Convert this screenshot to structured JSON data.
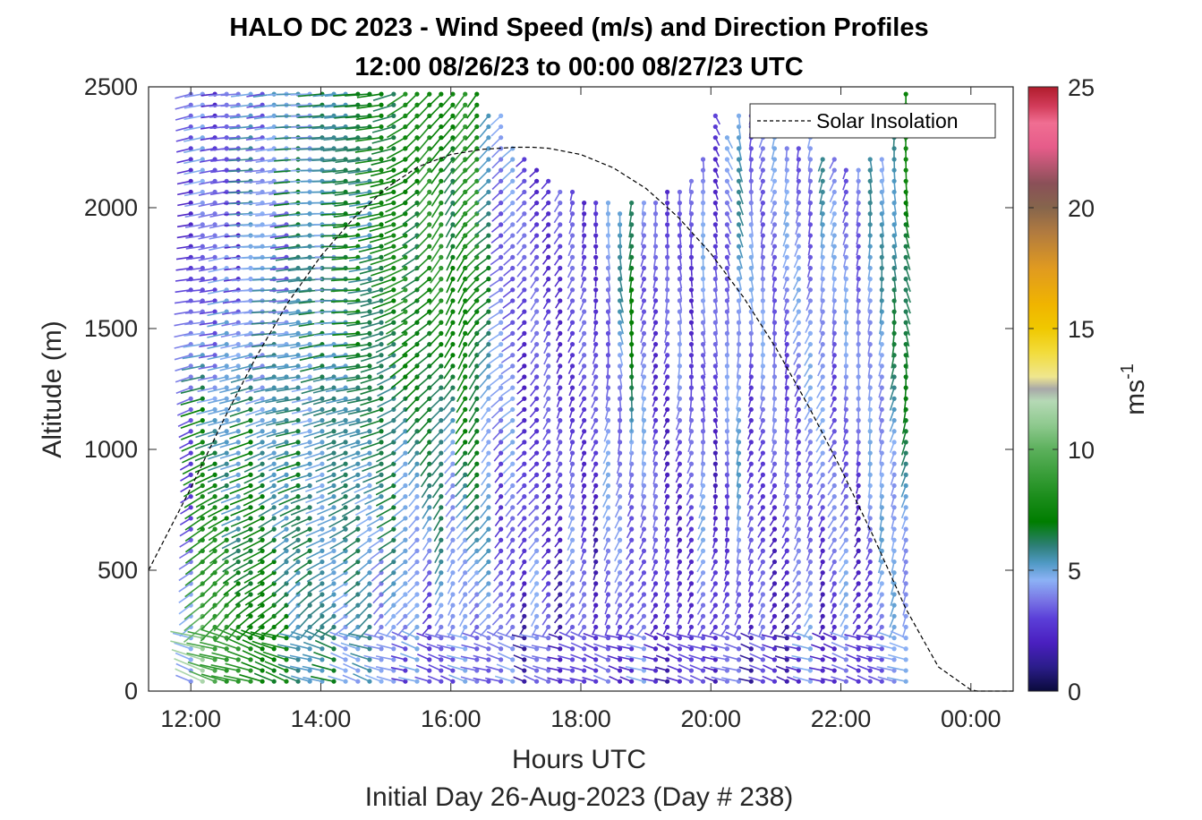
{
  "chart_data": {
    "type": "scatter",
    "title": "HALO DC 2023 - Wind Speed (m/s) and Direction Profiles",
    "subtitle": "12:00 08/26/23 to 00:00 08/27/23  UTC",
    "xlabel": "Hours UTC",
    "xlabel2": "Initial Day 26-Aug-2023 (Day # 238)",
    "ylabel": "Altitude (m)",
    "xlim": [
      11.35,
      24.65
    ],
    "ylim": [
      0,
      2500
    ],
    "x_ticks": [
      12,
      14,
      16,
      18,
      20,
      22,
      24
    ],
    "x_tick_labels": [
      "12:00",
      "14:00",
      "16:00",
      "18:00",
      "20:00",
      "22:00",
      "00:00"
    ],
    "y_ticks": [
      0,
      500,
      1000,
      1500,
      2000,
      2500
    ],
    "y_tick_labels": [
      "0",
      "500",
      "1000",
      "1500",
      "2000",
      "2500"
    ],
    "grid": false,
    "legend": {
      "location": "top-right",
      "entries": [
        "Solar Insolation"
      ]
    },
    "colorbar": {
      "label": "ms",
      "label_exponent": "-1",
      "range": [
        0,
        25
      ],
      "ticks": [
        0,
        5,
        10,
        15,
        20,
        25
      ],
      "tick_labels": [
        "0",
        "5",
        "10",
        "15",
        "20",
        "25"
      ],
      "colormap": [
        [
          0,
          "#0a0a3c"
        ],
        [
          1,
          "#2b1d8a"
        ],
        [
          2,
          "#4a1fc0"
        ],
        [
          3,
          "#5b3fd8"
        ],
        [
          3.8,
          "#7a78e6"
        ],
        [
          4.6,
          "#8cb2f5"
        ],
        [
          5.3,
          "#4f99c4"
        ],
        [
          6,
          "#2e7f78"
        ],
        [
          7,
          "#007d00"
        ],
        [
          8,
          "#1a8c1a"
        ],
        [
          9,
          "#3a9e3a"
        ],
        [
          10,
          "#5cb05c"
        ],
        [
          11,
          "#8ec98e"
        ],
        [
          12,
          "#b5d9b5"
        ],
        [
          12.5,
          "#a8a8a8"
        ],
        [
          13,
          "#efe68f"
        ],
        [
          14,
          "#f2dc3c"
        ],
        [
          15,
          "#f0c800"
        ],
        [
          16,
          "#f0b400"
        ],
        [
          17.5,
          "#e09a20"
        ],
        [
          19,
          "#b07a40"
        ],
        [
          20,
          "#86654c"
        ],
        [
          21,
          "#8a5058"
        ],
        [
          22.5,
          "#e65c8a"
        ],
        [
          23.5,
          "#f06e92"
        ],
        [
          24.2,
          "#d23c5a"
        ],
        [
          25,
          "#b01c2c"
        ]
      ]
    },
    "series": [
      {
        "name": "Solar Insolation",
        "style": "dashed",
        "color": "#000000",
        "x": [
          11.35,
          12,
          12.5,
          13,
          13.5,
          14,
          14.5,
          15,
          15.5,
          16,
          16.5,
          17,
          17.25,
          17.5,
          18,
          18.5,
          19,
          19.5,
          20,
          20.5,
          21,
          21.5,
          22,
          22.5,
          23,
          23.5,
          24,
          24.1,
          24.65
        ],
        "y": [
          500,
          840,
          1120,
          1380,
          1610,
          1800,
          1955,
          2080,
          2170,
          2220,
          2242,
          2250,
          2250,
          2246,
          2220,
          2165,
          2080,
          1960,
          1810,
          1630,
          1420,
          1180,
          920,
          640,
          340,
          100,
          5,
          0,
          0
        ]
      },
      {
        "name": "wind barbs",
        "description_of_fields": "x hours UTC, altitude m, speed m/s, direction deg",
        "profile_times_h": [
          12.0,
          12.18,
          12.37,
          12.55,
          12.73,
          12.92,
          13.1,
          13.28,
          13.47,
          13.65,
          13.83,
          14.02,
          14.2,
          14.38,
          14.57,
          14.75,
          14.93,
          15.12,
          15.3,
          15.48,
          15.67,
          15.85,
          16.03,
          16.22,
          16.4,
          16.58,
          16.77,
          16.95,
          17.13,
          17.32,
          17.5,
          17.68,
          17.87,
          18.05,
          18.23,
          18.42,
          18.6,
          18.78,
          18.97,
          19.15,
          19.33,
          19.52,
          19.7,
          19.88,
          20.07,
          20.25,
          20.43,
          20.62,
          20.8,
          20.98,
          21.17,
          21.35,
          21.53,
          21.72,
          21.9,
          22.08,
          22.27,
          22.45,
          22.63,
          22.82,
          23.0
        ],
        "top_altitude_m": [
          2500,
          2500,
          2500,
          2500,
          2500,
          2500,
          2500,
          2500,
          2500,
          2500,
          2500,
          2500,
          2500,
          2500,
          2500,
          2500,
          2500,
          2500,
          2500,
          2500,
          2500,
          2500,
          2500,
          2480,
          2480,
          2420,
          2420,
          2260,
          2220,
          2160,
          2120,
          2100,
          2080,
          2060,
          2040,
          2020,
          2000,
          2020,
          2040,
          2020,
          2080,
          2100,
          2120,
          2200,
          2380,
          2300,
          2400,
          2380,
          2300,
          2300,
          2280,
          2260,
          2300,
          2220,
          2200,
          2180,
          2180,
          2200,
          2200,
          2300,
          2500
        ],
        "low_altitude_speed_mps": [
          4,
          11,
          10,
          9,
          8,
          8,
          8,
          7,
          7,
          6,
          6,
          5,
          6,
          5,
          5,
          5,
          4,
          5,
          3,
          4,
          3,
          4,
          3,
          4,
          4,
          4,
          3,
          4,
          2,
          4,
          3,
          2,
          4,
          3,
          2,
          4,
          3,
          2,
          4,
          3,
          2,
          2,
          3,
          4,
          2,
          3,
          4,
          2,
          3,
          2,
          2,
          3,
          4,
          2,
          3,
          4,
          2,
          3,
          4,
          4,
          4
        ],
        "upper_altitude_speed_mps": [
          3,
          4,
          3,
          4,
          3,
          5,
          4,
          5,
          4,
          6,
          5,
          6,
          5,
          6,
          7,
          6,
          7,
          7,
          8,
          7,
          8,
          8,
          7,
          8,
          8,
          6,
          4,
          4,
          3,
          3,
          3,
          3,
          3,
          3,
          3,
          4,
          5,
          7,
          4,
          3,
          3,
          4,
          3,
          4,
          3,
          4,
          5,
          4,
          4,
          4,
          4,
          4,
          4,
          5,
          4,
          4,
          4,
          5,
          5,
          6,
          7
        ],
        "upper_direction_deg": [
          250,
          255,
          255,
          255,
          260,
          260,
          260,
          260,
          262,
          262,
          262,
          262,
          265,
          265,
          262,
          258,
          250,
          240,
          225,
          215,
          210,
          205,
          200,
          200,
          205,
          210,
          215,
          215,
          210,
          205,
          200,
          195,
          190,
          190,
          185,
          180,
          175,
          180,
          185,
          185,
          185,
          180,
          180,
          175,
          170,
          170,
          175,
          180,
          185,
          185,
          185,
          190,
          190,
          190,
          190,
          185,
          180,
          180,
          180,
          180,
          175
        ]
      }
    ]
  }
}
